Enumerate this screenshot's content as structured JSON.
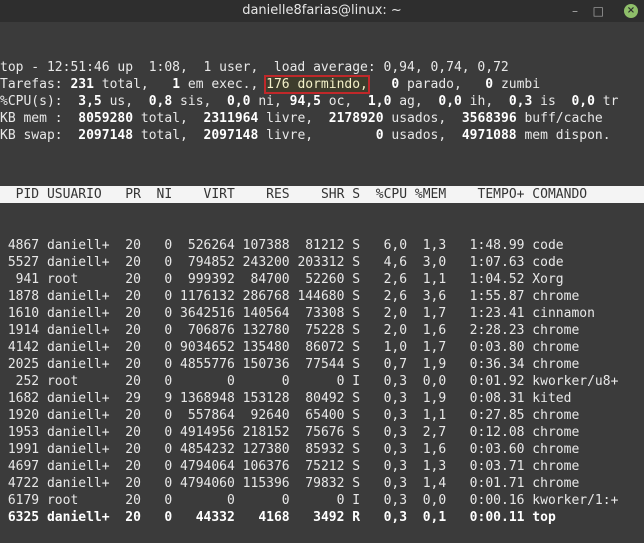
{
  "window": {
    "title": "danielle8farias@linux: ~"
  },
  "colors": {
    "background": "#3b3b3b",
    "highlight_border": "#c0282a",
    "header_bg": "#f4f4f4"
  },
  "summary": [
    [
      {
        "t": "top - 12:51:46 up  1:08,  1 user,  load average: 0,94, 0,74, 0,72"
      }
    ],
    [
      {
        "t": "Tarefas: "
      },
      {
        "t": "231",
        "b": 1
      },
      {
        "t": " total,   "
      },
      {
        "t": "1",
        "b": 1
      },
      {
        "t": " em exec., "
      },
      {
        "t": "176 dormindo,",
        "h": 1
      },
      {
        "t": "   "
      },
      {
        "t": "0",
        "b": 1
      },
      {
        "t": " parado,   "
      },
      {
        "t": "0",
        "b": 1
      },
      {
        "t": " zumbi"
      }
    ],
    [
      {
        "t": "%CPU(s):  "
      },
      {
        "t": "3,5",
        "b": 1
      },
      {
        "t": " us,  "
      },
      {
        "t": "0,8",
        "b": 1
      },
      {
        "t": " sis,  "
      },
      {
        "t": "0,0",
        "b": 1
      },
      {
        "t": " ni, "
      },
      {
        "t": "94,5",
        "b": 1
      },
      {
        "t": " oc,  "
      },
      {
        "t": "1,0",
        "b": 1
      },
      {
        "t": " ag,  "
      },
      {
        "t": "0,0",
        "b": 1
      },
      {
        "t": " ih,  "
      },
      {
        "t": "0,3",
        "b": 1
      },
      {
        "t": " is  "
      },
      {
        "t": "0,0",
        "b": 1
      },
      {
        "t": " tr"
      }
    ],
    [
      {
        "t": "KB mem :  "
      },
      {
        "t": "8059280",
        "b": 1
      },
      {
        "t": " total,  "
      },
      {
        "t": "2311964",
        "b": 1
      },
      {
        "t": " livre,  "
      },
      {
        "t": "2178920",
        "b": 1
      },
      {
        "t": " usados,  "
      },
      {
        "t": "3568396",
        "b": 1
      },
      {
        "t": " buff/cache"
      }
    ],
    [
      {
        "t": "KB swap:  "
      },
      {
        "t": "2097148",
        "b": 1
      },
      {
        "t": " total,  "
      },
      {
        "t": "2097148",
        "b": 1
      },
      {
        "t": " livre,        "
      },
      {
        "t": "0",
        "b": 1
      },
      {
        "t": " usados,  "
      },
      {
        "t": "4971088",
        "b": 1
      },
      {
        "t": " mem dispon."
      }
    ]
  ],
  "table": {
    "columns": [
      "PID",
      "USUARIO",
      "PR",
      "NI",
      "VIRT",
      "RES",
      "SHR",
      "S",
      "%CPU",
      "%MEM",
      "TEMPO+",
      "COMANDO"
    ],
    "rows": [
      [
        "4867",
        "daniell+",
        "20",
        "0",
        "526264",
        "107388",
        "81212",
        "S",
        "6,0",
        "1,3",
        "1:48.99",
        "code"
      ],
      [
        "5527",
        "daniell+",
        "20",
        "0",
        "794852",
        "243200",
        "203312",
        "S",
        "4,6",
        "3,0",
        "1:07.63",
        "code"
      ],
      [
        "941",
        "root",
        "20",
        "0",
        "999392",
        "84700",
        "52260",
        "S",
        "2,6",
        "1,1",
        "1:04.52",
        "Xorg"
      ],
      [
        "1878",
        "daniell+",
        "20",
        "0",
        "1176132",
        "286768",
        "144680",
        "S",
        "2,6",
        "3,6",
        "1:55.87",
        "chrome"
      ],
      [
        "1610",
        "daniell+",
        "20",
        "0",
        "3642516",
        "140564",
        "73308",
        "S",
        "2,0",
        "1,7",
        "1:23.41",
        "cinnamon"
      ],
      [
        "1914",
        "daniell+",
        "20",
        "0",
        "706876",
        "132780",
        "75228",
        "S",
        "2,0",
        "1,6",
        "2:28.23",
        "chrome"
      ],
      [
        "4142",
        "daniell+",
        "20",
        "0",
        "9034652",
        "135480",
        "86072",
        "S",
        "1,0",
        "1,7",
        "0:03.80",
        "chrome"
      ],
      [
        "2025",
        "daniell+",
        "20",
        "0",
        "4855776",
        "150736",
        "77544",
        "S",
        "0,7",
        "1,9",
        "0:36.34",
        "chrome"
      ],
      [
        "252",
        "root",
        "20",
        "0",
        "0",
        "0",
        "0",
        "I",
        "0,3",
        "0,0",
        "0:01.92",
        "kworker/u8+"
      ],
      [
        "1682",
        "daniell+",
        "29",
        "9",
        "1368948",
        "153128",
        "80492",
        "S",
        "0,3",
        "1,9",
        "0:08.31",
        "kited"
      ],
      [
        "1920",
        "daniell+",
        "20",
        "0",
        "557864",
        "92640",
        "65400",
        "S",
        "0,3",
        "1,1",
        "0:27.85",
        "chrome"
      ],
      [
        "1953",
        "daniell+",
        "20",
        "0",
        "4914956",
        "218152",
        "75676",
        "S",
        "0,3",
        "2,7",
        "0:12.08",
        "chrome"
      ],
      [
        "1991",
        "daniell+",
        "20",
        "0",
        "4854232",
        "127380",
        "85932",
        "S",
        "0,3",
        "1,6",
        "0:03.60",
        "chrome"
      ],
      [
        "4697",
        "daniell+",
        "20",
        "0",
        "4794064",
        "106376",
        "75212",
        "S",
        "0,3",
        "1,3",
        "0:03.71",
        "chrome"
      ],
      [
        "4722",
        "daniell+",
        "20",
        "0",
        "4794060",
        "115396",
        "79832",
        "S",
        "0,3",
        "1,4",
        "0:01.71",
        "chrome"
      ],
      [
        "6179",
        "root",
        "20",
        "0",
        "0",
        "0",
        "0",
        "I",
        "0,3",
        "0,0",
        "0:00.16",
        "kworker/1:+"
      ],
      [
        "6325",
        "daniell+",
        "20",
        "0",
        "44332",
        "4168",
        "3492",
        "R",
        "0,3",
        "0,1",
        "0:00.11",
        "top"
      ]
    ],
    "bold_row_pid": "6325"
  }
}
